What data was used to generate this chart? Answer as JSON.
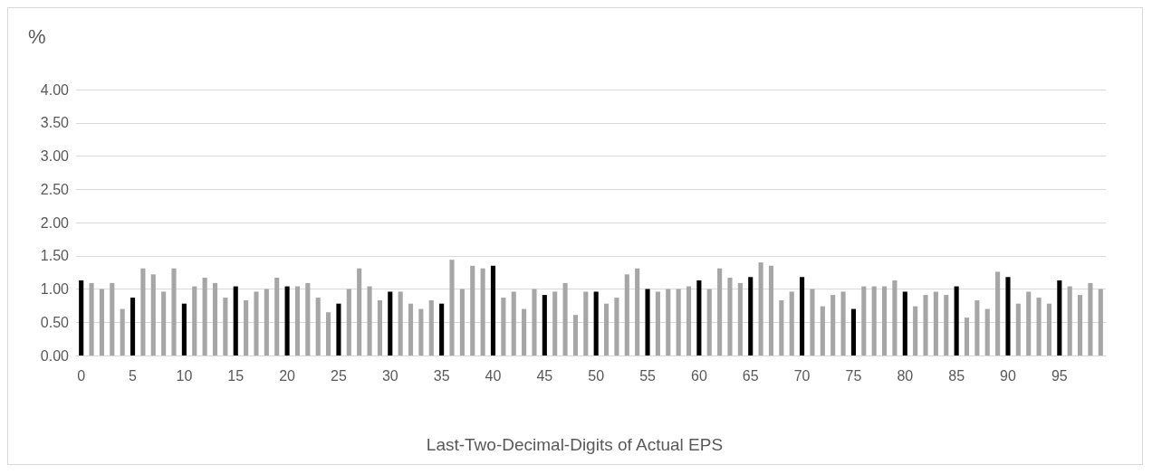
{
  "chart_data": {
    "type": "bar",
    "ylabel": "%",
    "xlabel": "Last-Two-Decimal-Digits of Actual EPS",
    "categories": [
      "0",
      null,
      null,
      null,
      null,
      "5",
      null,
      null,
      null,
      null,
      "10",
      null,
      null,
      null,
      null,
      "15",
      null,
      null,
      null,
      null,
      "20",
      null,
      null,
      null,
      null,
      "25",
      null,
      null,
      null,
      null,
      "30",
      null,
      null,
      null,
      null,
      "35",
      null,
      null,
      null,
      null,
      "40",
      null,
      null,
      null,
      null,
      "45",
      null,
      null,
      null,
      null,
      "50",
      null,
      null,
      null,
      null,
      "55",
      null,
      null,
      null,
      null,
      "60",
      null,
      null,
      null,
      null,
      "65",
      null,
      null,
      null,
      null,
      "70",
      null,
      null,
      null,
      null,
      "75",
      null,
      null,
      null,
      null,
      "80",
      null,
      null,
      null,
      null,
      "85",
      null,
      null,
      null,
      null,
      "90",
      null,
      null,
      null,
      null,
      "95",
      null,
      null,
      null,
      null
    ],
    "values": [
      1.13,
      1.09,
      1.0,
      1.09,
      0.7,
      0.87,
      1.31,
      1.22,
      0.96,
      1.31,
      0.78,
      1.04,
      1.17,
      1.09,
      0.87,
      1.04,
      0.83,
      0.96,
      1.0,
      1.17,
      1.04,
      1.04,
      1.09,
      0.87,
      0.65,
      0.78,
      1.0,
      1.31,
      1.04,
      0.83,
      0.96,
      0.96,
      0.78,
      0.7,
      0.83,
      0.78,
      1.44,
      1.0,
      1.35,
      1.31,
      1.35,
      0.87,
      0.96,
      0.7,
      1.0,
      0.91,
      0.96,
      1.09,
      0.61,
      0.96,
      0.96,
      0.78,
      0.87,
      1.22,
      1.31,
      1.0,
      0.96,
      1.0,
      1.0,
      1.04,
      1.13,
      1.0,
      1.31,
      1.17,
      1.09,
      1.18,
      1.4,
      1.35,
      0.83,
      0.96,
      1.18,
      1.0,
      0.74,
      0.91,
      0.96,
      0.7,
      1.04,
      1.04,
      1.04,
      1.13,
      0.96,
      0.74,
      0.91,
      0.96,
      0.91,
      1.04,
      0.57,
      0.83,
      0.7,
      1.26,
      1.18,
      0.78,
      0.96,
      0.87,
      0.78,
      1.13,
      1.04,
      0.91,
      1.09,
      1.0
    ],
    "colors": [
      "#000000",
      "#a6a6a6",
      "#a6a6a6",
      "#a6a6a6",
      "#a6a6a6",
      "#000000",
      "#a6a6a6",
      "#a6a6a6",
      "#a6a6a6",
      "#a6a6a6",
      "#000000",
      "#a6a6a6",
      "#a6a6a6",
      "#a6a6a6",
      "#a6a6a6",
      "#000000",
      "#a6a6a6",
      "#a6a6a6",
      "#a6a6a6",
      "#a6a6a6",
      "#000000",
      "#a6a6a6",
      "#a6a6a6",
      "#a6a6a6",
      "#a6a6a6",
      "#000000",
      "#a6a6a6",
      "#a6a6a6",
      "#a6a6a6",
      "#a6a6a6",
      "#000000",
      "#a6a6a6",
      "#a6a6a6",
      "#a6a6a6",
      "#a6a6a6",
      "#000000",
      "#a6a6a6",
      "#a6a6a6",
      "#a6a6a6",
      "#a6a6a6",
      "#000000",
      "#a6a6a6",
      "#a6a6a6",
      "#a6a6a6",
      "#a6a6a6",
      "#000000",
      "#a6a6a6",
      "#a6a6a6",
      "#a6a6a6",
      "#a6a6a6",
      "#000000",
      "#a6a6a6",
      "#a6a6a6",
      "#a6a6a6",
      "#a6a6a6",
      "#000000",
      "#a6a6a6",
      "#a6a6a6",
      "#a6a6a6",
      "#a6a6a6",
      "#000000",
      "#a6a6a6",
      "#a6a6a6",
      "#a6a6a6",
      "#a6a6a6",
      "#000000",
      "#a6a6a6",
      "#a6a6a6",
      "#a6a6a6",
      "#a6a6a6",
      "#000000",
      "#a6a6a6",
      "#a6a6a6",
      "#a6a6a6",
      "#a6a6a6",
      "#000000",
      "#a6a6a6",
      "#a6a6a6",
      "#a6a6a6",
      "#a6a6a6",
      "#000000",
      "#a6a6a6",
      "#a6a6a6",
      "#a6a6a6",
      "#a6a6a6",
      "#000000",
      "#a6a6a6",
      "#a6a6a6",
      "#a6a6a6",
      "#a6a6a6",
      "#000000",
      "#a6a6a6",
      "#a6a6a6",
      "#a6a6a6",
      "#a6a6a6",
      "#000000",
      "#a6a6a6",
      "#a6a6a6",
      "#a6a6a6",
      "#a6a6a6"
    ],
    "ylim": [
      0,
      4
    ],
    "yticks": [
      {
        "value": 0,
        "label": "0.00"
      },
      {
        "value": 0.5,
        "label": "0.50"
      },
      {
        "value": 1,
        "label": "1.00"
      },
      {
        "value": 1.5,
        "label": "1.50"
      },
      {
        "value": 2,
        "label": "2.00"
      },
      {
        "value": 2.5,
        "label": "2.50"
      },
      {
        "value": 3,
        "label": "3.00"
      },
      {
        "value": 3.5,
        "label": "3.50"
      },
      {
        "value": 4,
        "label": "4.00"
      }
    ],
    "grid": "y"
  }
}
